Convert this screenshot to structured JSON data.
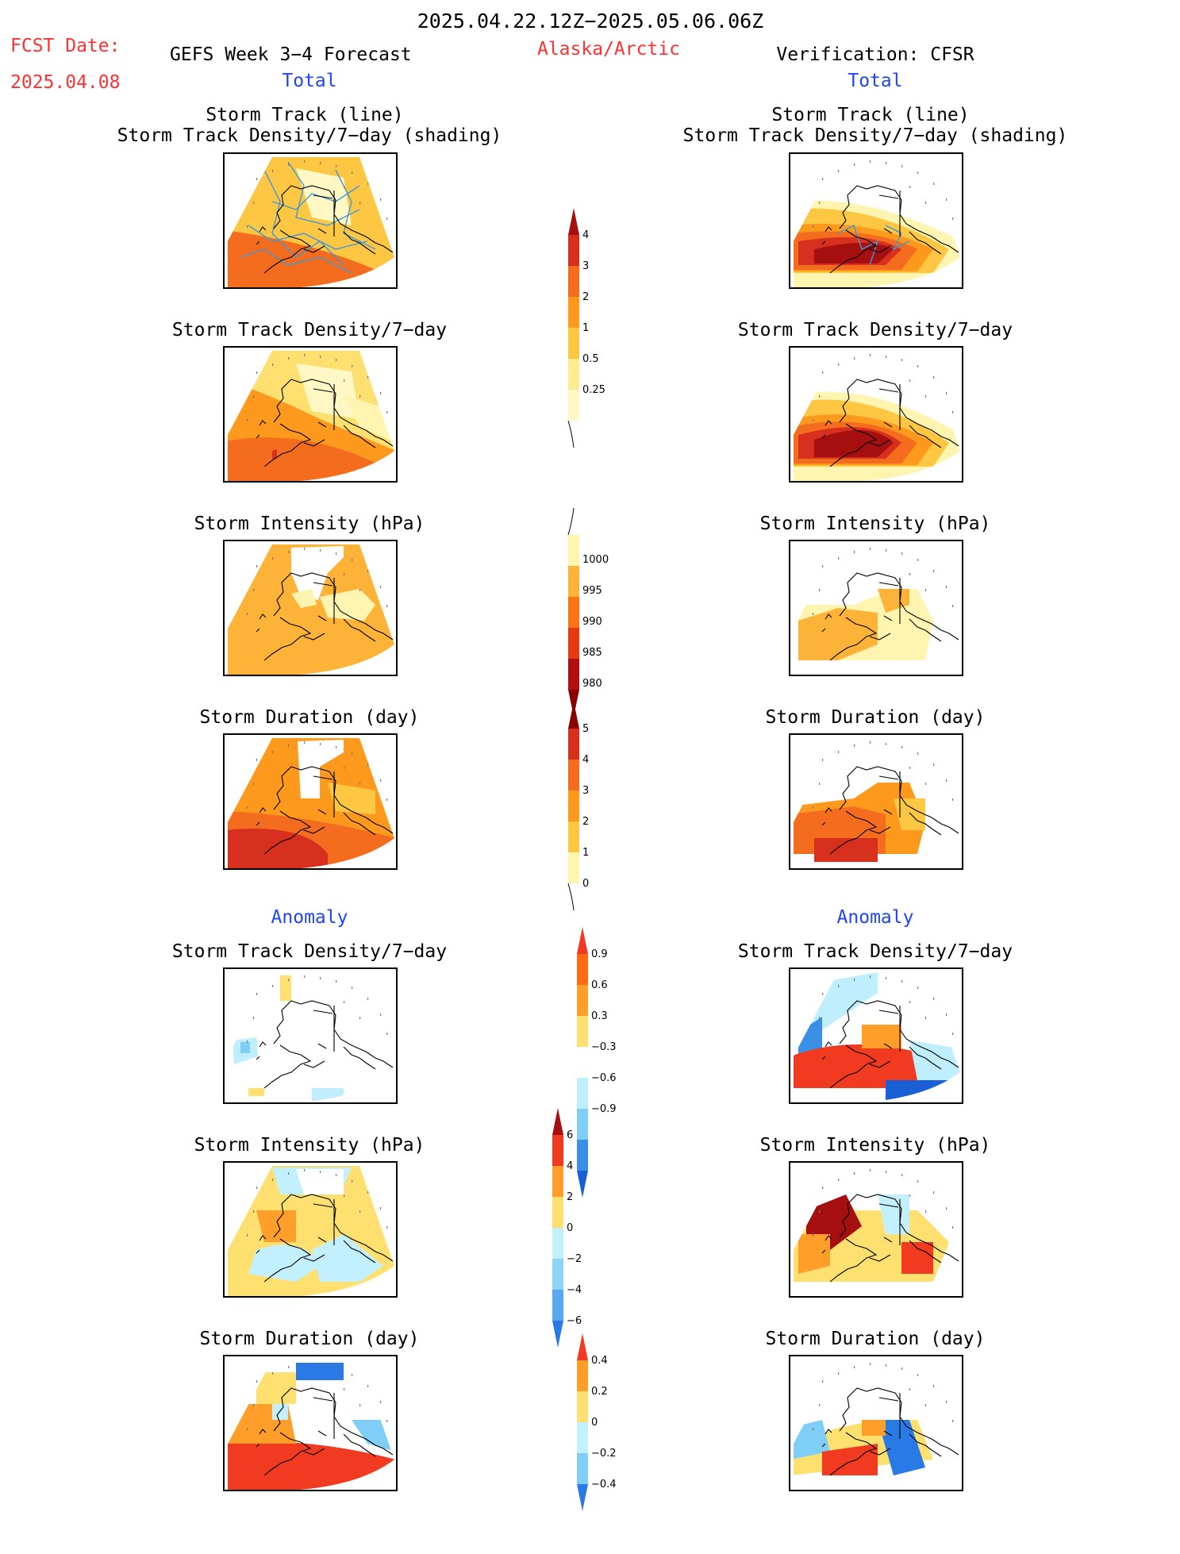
{
  "header": {
    "title": "2025.04.22.12Z−2025.05.06.06Z",
    "fcst_label": "FCST Date:",
    "fcst_date": "2025.04.08",
    "forecast_label": "GEFS Week 3−4 Forecast",
    "region": "Alaska/Arctic",
    "verification_label": "Verification: CFSR"
  },
  "colors": {
    "red_text": "#ff3030",
    "blue_text": "#1f44ff"
  },
  "sections": {
    "total_label": "Total",
    "anomaly_label": "Anomaly"
  },
  "panel_titles": {
    "track_line": "Storm Track (line)",
    "track_shading": "Storm Track Density/7−day (shading)",
    "density": "Storm Track Density/7−day",
    "intensity": "Storm Intensity (hPa)",
    "duration": "Storm Duration (day)"
  },
  "chart_data": [
    {
      "type": "heatmap",
      "panel": "forecast-total-track",
      "title": "Storm Track (line) / Storm Track Density/7−day (shading)",
      "colorbar": "density"
    },
    {
      "type": "heatmap",
      "panel": "forecast-total-density",
      "title": "Storm Track Density/7−day",
      "colorbar": "density"
    },
    {
      "type": "heatmap",
      "panel": "forecast-total-intensity",
      "title": "Storm Intensity (hPa)",
      "colorbar": "intensity"
    },
    {
      "type": "heatmap",
      "panel": "forecast-total-duration",
      "title": "Storm Duration (day)",
      "colorbar": "duration"
    },
    {
      "type": "heatmap",
      "panel": "forecast-anomaly-density",
      "title": "Storm Track Density/7−day",
      "colorbar": "density_anomaly"
    },
    {
      "type": "heatmap",
      "panel": "forecast-anomaly-intensity",
      "title": "Storm Intensity (hPa)",
      "colorbar": "intensity_anomaly"
    },
    {
      "type": "heatmap",
      "panel": "forecast-anomaly-duration",
      "title": "Storm Duration (day)",
      "colorbar": "duration_anomaly"
    },
    {
      "type": "heatmap",
      "panel": "verification-total-track",
      "title": "Storm Track (line) / Storm Track Density/7−day (shading)",
      "colorbar": "density"
    },
    {
      "type": "heatmap",
      "panel": "verification-total-density",
      "title": "Storm Track Density/7−day",
      "colorbar": "density"
    },
    {
      "type": "heatmap",
      "panel": "verification-total-intensity",
      "title": "Storm Intensity (hPa)",
      "colorbar": "intensity"
    },
    {
      "type": "heatmap",
      "panel": "verification-total-duration",
      "title": "Storm Duration (day)",
      "colorbar": "duration"
    },
    {
      "type": "heatmap",
      "panel": "verification-anomaly-density",
      "title": "Storm Track Density/7−day",
      "colorbar": "density_anomaly"
    },
    {
      "type": "heatmap",
      "panel": "verification-anomaly-intensity",
      "title": "Storm Intensity (hPa)",
      "colorbar": "intensity_anomaly"
    },
    {
      "type": "heatmap",
      "panel": "verification-anomaly-duration",
      "title": "Storm Duration (day)",
      "colorbar": "duration_anomaly"
    }
  ],
  "colorbars": {
    "density": {
      "labels": [
        "4",
        "3",
        "2",
        "1",
        "0.5",
        "0.25"
      ],
      "colors": [
        "#a50f0f",
        "#d7301f",
        "#f46d1f",
        "#fd9a1e",
        "#fdc743",
        "#ffeb90",
        "#fff8c4",
        "#ffffff"
      ]
    },
    "intensity": {
      "labels": [
        "1000",
        "995",
        "990",
        "985",
        "980"
      ],
      "colors": [
        "#ffffff",
        "#fff4b0",
        "#fdb338",
        "#fb7417",
        "#e63a12",
        "#b01010",
        "#8b0000"
      ]
    },
    "duration": {
      "labels": [
        "5",
        "4",
        "3",
        "2",
        "1",
        "0"
      ],
      "colors": [
        "#8b0000",
        "#d7301f",
        "#f46d1f",
        "#fd9a1e",
        "#fdc743",
        "#fff4b0",
        "#ffffff"
      ]
    },
    "density_anomaly": {
      "labels": [
        "0.9",
        "0.6",
        "0.3",
        "−0.3",
        "−0.6",
        "−0.9"
      ],
      "colors": [
        "#f03b20",
        "#ff6a12",
        "#ff9f2a",
        "#fde070",
        "#ffffff",
        "#bfeeff",
        "#7fcef7",
        "#3a8fe6",
        "#1a5fd6"
      ]
    },
    "intensity_anomaly": {
      "labels": [
        "6",
        "4",
        "2",
        "0",
        "−2",
        "−4",
        "−6"
      ],
      "colors": [
        "#a50f0f",
        "#f03b20",
        "#ff9f2a",
        "#fde070",
        "#c3f0ff",
        "#8fd3f7",
        "#58a8ef",
        "#2a7ae6"
      ]
    },
    "duration_anomaly": {
      "labels": [
        "0.4",
        "0.2",
        "0",
        "−0.2",
        "−0.4"
      ],
      "colors": [
        "#f03b20",
        "#ff9f2a",
        "#fde070",
        "#c3f0ff",
        "#7fcef7",
        "#2a7ae6"
      ]
    }
  }
}
